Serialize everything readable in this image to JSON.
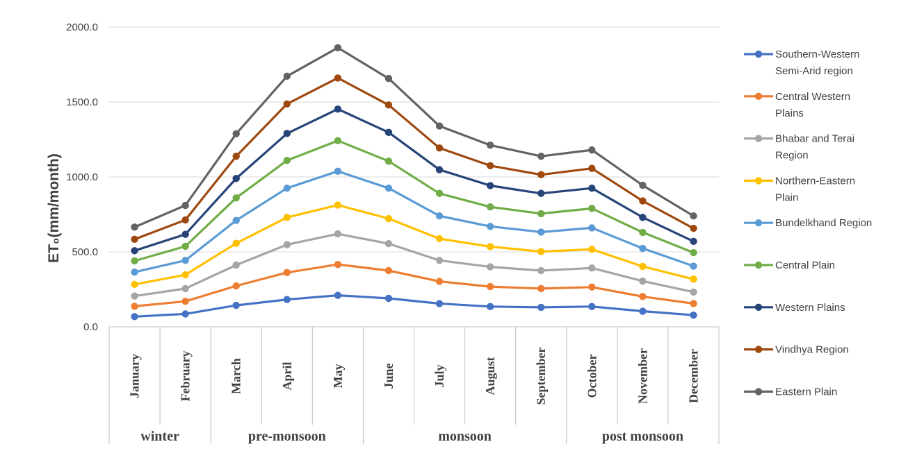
{
  "chart_data": {
    "type": "line",
    "stacked": true,
    "title": "",
    "xlabel": "",
    "ylabel": "ET₀(mm/month)",
    "ylim": [
      0,
      2000
    ],
    "yticks": [
      "0.0",
      "500.0",
      "1000.0",
      "1500.0",
      "2000.0"
    ],
    "grid": true,
    "legend_position": "right",
    "categories": [
      "January",
      "February",
      "March",
      "April",
      "May",
      "June",
      "July",
      "August",
      "September",
      "October",
      "November",
      "December"
    ],
    "seasons": [
      {
        "label": "winter",
        "span": 2
      },
      {
        "label": "pre-monsoon",
        "span": 3
      },
      {
        "label": "monsoon",
        "span": 4
      },
      {
        "label": "post monsoon",
        "span": 3
      }
    ],
    "series": [
      {
        "name": "Southern-Western Semi-Arid region",
        "legend_lines": [
          "Southern-Western",
          "Semi-Arid region"
        ],
        "color": "#4472C4",
        "values": [
          68,
          86,
          143,
          182,
          210,
          190,
          155,
          135,
          130,
          135,
          104,
          78
        ]
      },
      {
        "name": "Central Western Plains",
        "legend_lines": [
          "Central Western",
          "Plains"
        ],
        "color": "#ED7D31",
        "values": [
          137,
          170,
          273,
          362,
          416,
          375,
          303,
          268,
          255,
          265,
          202,
          155
        ]
      },
      {
        "name": "Bhabar and Terai Region",
        "legend_lines": [
          "Bhabar and Terai",
          "Region"
        ],
        "color": "#A5A5A5",
        "values": [
          205,
          255,
          412,
          548,
          620,
          555,
          443,
          400,
          375,
          392,
          305,
          232
        ]
      },
      {
        "name": "Northern-Eastern Plain",
        "legend_lines": [
          "Northern-Eastern",
          "Plain"
        ],
        "color": "#FFC000",
        "values": [
          283,
          347,
          557,
          730,
          812,
          722,
          588,
          535,
          502,
          517,
          403,
          318
        ]
      },
      {
        "name": "Bundelkhand Region",
        "legend_lines": [
          "Bundelkhand Region"
        ],
        "color": "#5B9BD5",
        "values": [
          365,
          443,
          710,
          925,
          1038,
          925,
          740,
          670,
          632,
          660,
          523,
          405
        ]
      },
      {
        "name": "Central Plain",
        "legend_lines": [
          "Central Plain"
        ],
        "color": "#70AD47",
        "values": [
          440,
          537,
          860,
          1110,
          1242,
          1105,
          890,
          800,
          755,
          790,
          630,
          495
        ]
      },
      {
        "name": "Western Plains",
        "legend_lines": [
          "Western Plains"
        ],
        "color": "#264478",
        "values": [
          508,
          617,
          990,
          1290,
          1453,
          1297,
          1048,
          942,
          890,
          925,
          730,
          570
        ]
      },
      {
        "name": "Vindhya Region",
        "legend_lines": [
          "Vindhya Region"
        ],
        "color": "#9E480E",
        "values": [
          584,
          713,
          1138,
          1487,
          1660,
          1480,
          1193,
          1075,
          1015,
          1057,
          840,
          657
        ]
      },
      {
        "name": "Eastern Plain",
        "legend_lines": [
          "Eastern Plain"
        ],
        "color": "#636363",
        "values": [
          665,
          810,
          1288,
          1672,
          1862,
          1657,
          1340,
          1212,
          1138,
          1180,
          944,
          740
        ]
      }
    ]
  }
}
